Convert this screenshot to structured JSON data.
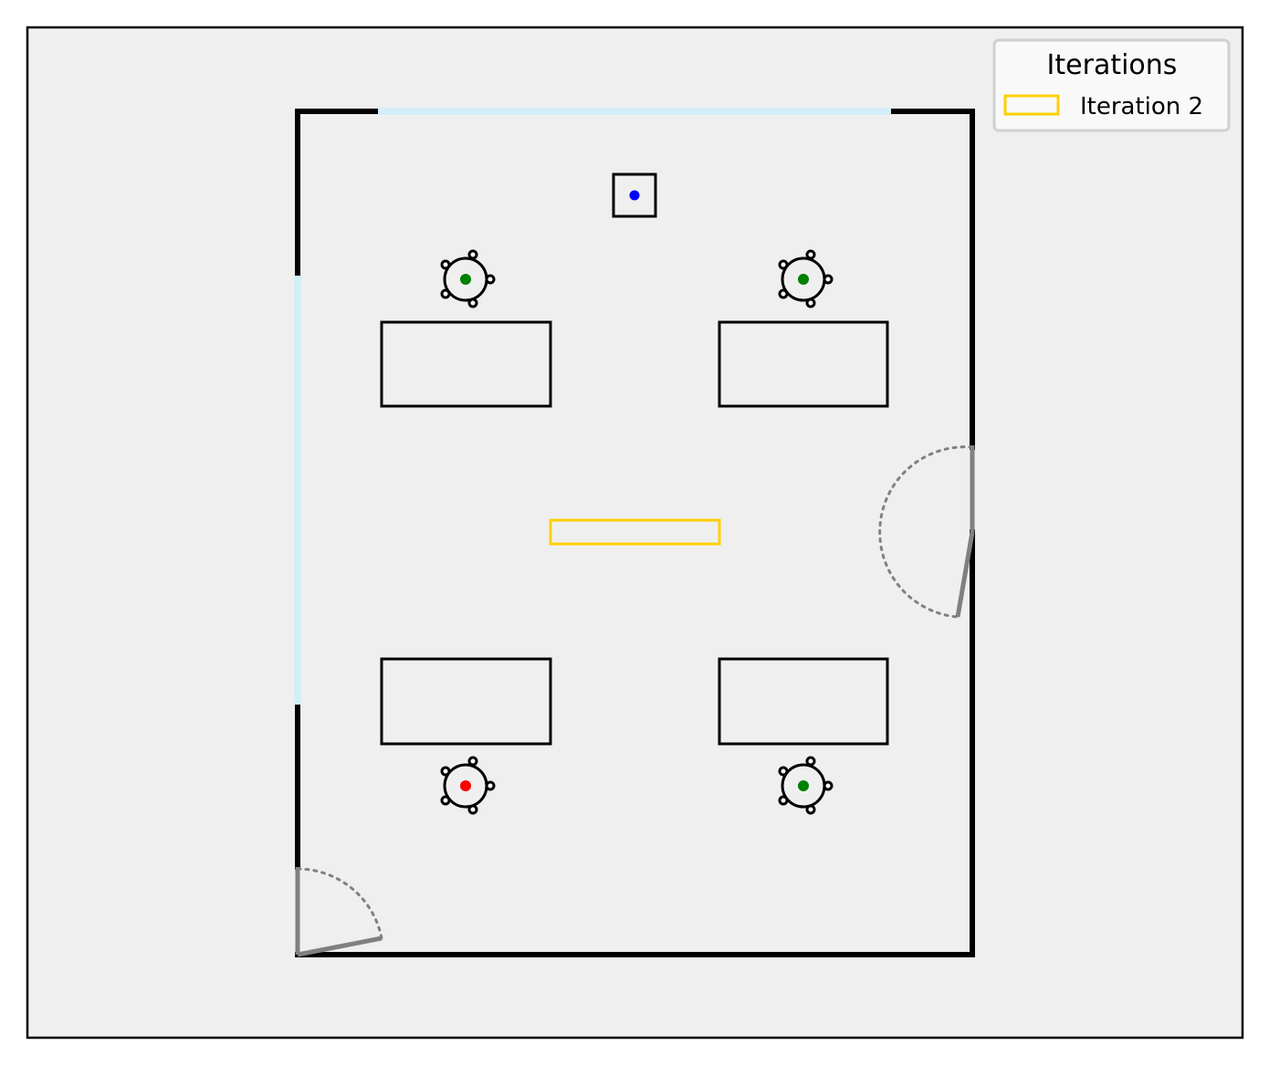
{
  "colors": {
    "canvas_bg": "#efefef",
    "wall": "#000000",
    "window": "#d4eef8",
    "door": "#808080",
    "furniture_stroke": "#000000",
    "occupied_dot": "#008000",
    "alert_dot": "#ff0000",
    "sensor_dot": "#0000ff",
    "iteration_2": "#ffd000"
  },
  "legend": {
    "title": "Iterations",
    "items": [
      {
        "label": "Iteration 2",
        "color": "#ffd000"
      }
    ]
  },
  "room": {
    "desks": 4,
    "chairs": [
      {
        "name": "chair-top-left",
        "status": "occupied",
        "dot_color": "#008000"
      },
      {
        "name": "chair-top-right",
        "status": "occupied",
        "dot_color": "#008000"
      },
      {
        "name": "chair-bottom-left",
        "status": "alert",
        "dot_color": "#ff0000"
      },
      {
        "name": "chair-bottom-right",
        "status": "occupied",
        "dot_color": "#008000"
      }
    ],
    "sensor": {
      "dot_color": "#0000ff"
    },
    "doors": 2,
    "windows": 2
  }
}
